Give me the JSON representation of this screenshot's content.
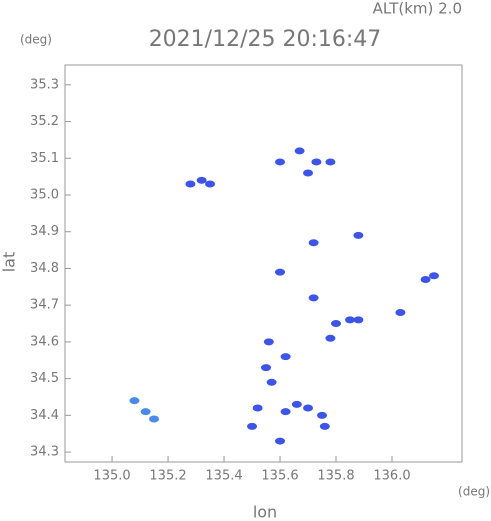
{
  "chart_data": {
    "type": "scatter",
    "title": "2021/12/25 20:16:47",
    "subtitle": "ALT(km)  2.0",
    "y_unit": "(deg)",
    "x_unit": "(deg)",
    "xlabel": "lon",
    "ylabel": "lat",
    "xlim": [
      134.832,
      136.25
    ],
    "ylim": [
      34.273,
      35.354
    ],
    "xticks": [
      {
        "value": 135,
        "label": "135.0"
      },
      135.2,
      135.4,
      135.6,
      135.8,
      {
        "value": 136,
        "label": "136.0"
      }
    ],
    "yticks": [
      34.3,
      34.4,
      34.5,
      34.6,
      34.7,
      34.8,
      34.9,
      {
        "value": 35,
        "label": "35.0"
      },
      35.1,
      35.2,
      35.3
    ],
    "series": [
      {
        "color": "#3d55e6",
        "x": [
          135.28,
          135.32,
          135.35,
          135.6,
          135.67,
          135.7,
          135.73,
          135.78,
          135.72,
          135.88,
          135.6,
          136.12,
          136.15,
          135.72,
          136.03,
          135.8,
          135.85,
          135.88,
          135.78,
          135.56,
          135.62,
          135.55,
          135.57,
          135.66,
          135.7,
          135.62,
          135.75,
          135.76,
          135.52,
          135.5,
          135.6
        ],
        "y": [
          35.03,
          35.04,
          35.03,
          35.09,
          35.12,
          35.06,
          35.09,
          35.09,
          34.87,
          34.89,
          34.79,
          34.77,
          34.78,
          34.72,
          34.68,
          34.65,
          34.66,
          34.66,
          34.61,
          34.6,
          34.56,
          34.53,
          34.49,
          34.43,
          34.42,
          34.41,
          34.4,
          34.37,
          34.42,
          34.37,
          34.33
        ]
      },
      {
        "color": "#4a8ae8",
        "x": [
          135.08,
          135.12,
          135.15
        ],
        "y": [
          34.44,
          34.41,
          34.39
        ]
      }
    ]
  }
}
